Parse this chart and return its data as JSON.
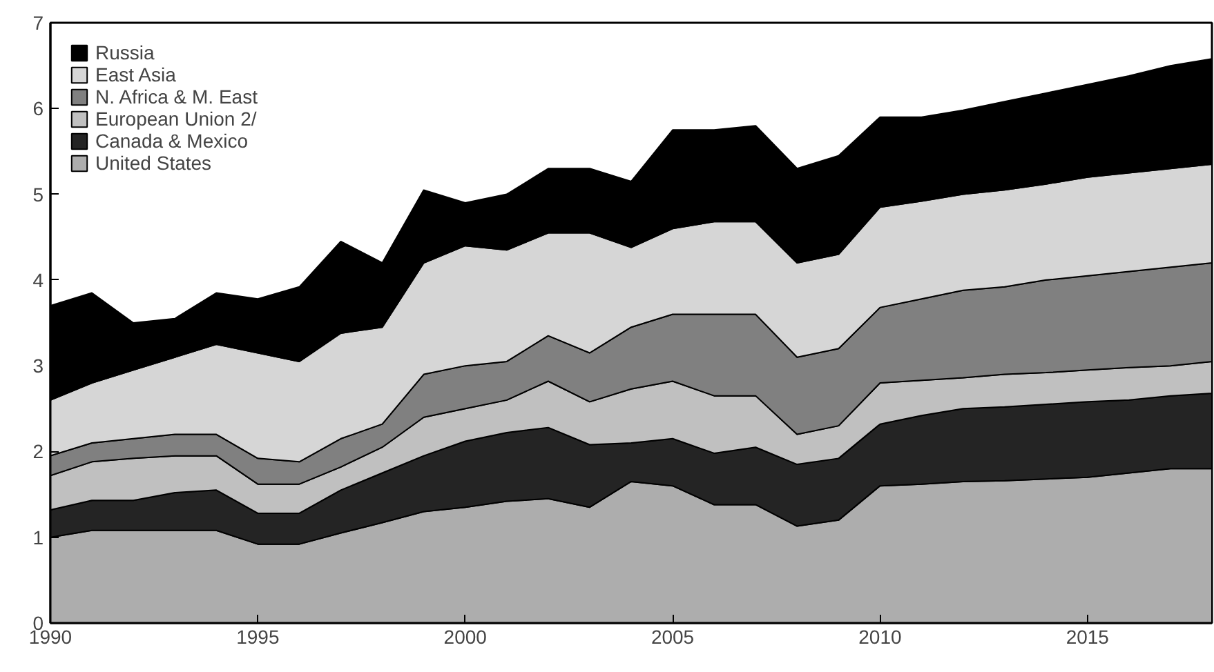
{
  "chart_data": {
    "type": "area",
    "stacked": true,
    "x": [
      1990,
      1991,
      1992,
      1993,
      1994,
      1995,
      1996,
      1997,
      1998,
      1999,
      2000,
      2001,
      2002,
      2003,
      2004,
      2005,
      2006,
      2007,
      2008,
      2009,
      2010,
      2011,
      2012,
      2013,
      2014,
      2015,
      2016,
      2017,
      2018
    ],
    "series": [
      {
        "name": "United States",
        "color": "#adadad",
        "values": [
          1.0,
          1.08,
          1.08,
          1.08,
          1.08,
          0.92,
          0.92,
          1.05,
          1.17,
          1.3,
          1.35,
          1.42,
          1.45,
          1.35,
          1.65,
          1.6,
          1.38,
          1.38,
          1.13,
          1.2,
          1.6,
          1.62,
          1.65,
          1.66,
          1.68,
          1.7,
          1.75,
          1.8,
          1.8
        ]
      },
      {
        "name": "Canada & Mexico",
        "color": "#242424",
        "values": [
          0.32,
          0.35,
          0.35,
          0.44,
          0.47,
          0.36,
          0.36,
          0.5,
          0.58,
          0.65,
          0.77,
          0.8,
          0.83,
          0.73,
          0.45,
          0.55,
          0.6,
          0.67,
          0.72,
          0.72,
          0.72,
          0.8,
          0.85,
          0.86,
          0.87,
          0.88,
          0.85,
          0.85,
          0.88
        ]
      },
      {
        "name": "European Union 2/",
        "color": "#c0c0c0",
        "values": [
          0.4,
          0.45,
          0.49,
          0.43,
          0.4,
          0.34,
          0.34,
          0.27,
          0.3,
          0.45,
          0.38,
          0.38,
          0.54,
          0.5,
          0.63,
          0.67,
          0.67,
          0.6,
          0.35,
          0.38,
          0.48,
          0.41,
          0.36,
          0.38,
          0.37,
          0.37,
          0.38,
          0.35,
          0.37
        ]
      },
      {
        "name": "N. Africa & M. East",
        "color": "#808080",
        "values": [
          0.23,
          0.22,
          0.23,
          0.25,
          0.25,
          0.3,
          0.26,
          0.33,
          0.27,
          0.5,
          0.5,
          0.45,
          0.53,
          0.57,
          0.72,
          0.78,
          0.95,
          0.95,
          0.9,
          0.9,
          0.88,
          0.95,
          1.02,
          1.02,
          1.08,
          1.1,
          1.12,
          1.15,
          1.15
        ]
      },
      {
        "name": "East Asia",
        "color": "#d6d6d6",
        "values": [
          0.65,
          0.7,
          0.8,
          0.9,
          1.05,
          1.23,
          1.17,
          1.23,
          1.13,
          1.3,
          1.4,
          1.3,
          1.2,
          1.4,
          0.93,
          1.0,
          1.08,
          1.08,
          1.1,
          1.1,
          1.17,
          1.14,
          1.12,
          1.13,
          1.12,
          1.15,
          1.15,
          1.15,
          1.15
        ]
      },
      {
        "name": "Russia",
        "color": "#000000",
        "values": [
          1.1,
          1.05,
          0.55,
          0.45,
          0.6,
          0.63,
          0.87,
          1.07,
          0.75,
          0.85,
          0.5,
          0.65,
          0.75,
          0.75,
          0.77,
          1.15,
          1.07,
          1.12,
          1.1,
          1.15,
          1.05,
          0.98,
          0.98,
          1.03,
          1.06,
          1.08,
          1.13,
          1.2,
          1.23
        ]
      }
    ],
    "xlim": [
      1990,
      2018
    ],
    "ylim": [
      0,
      7
    ],
    "xticks": [
      1990,
      1995,
      2000,
      2005,
      2010,
      2015
    ],
    "yticks": [
      0,
      1,
      2,
      3,
      4,
      5,
      6,
      7
    ],
    "legend": "top left",
    "grid": false
  }
}
